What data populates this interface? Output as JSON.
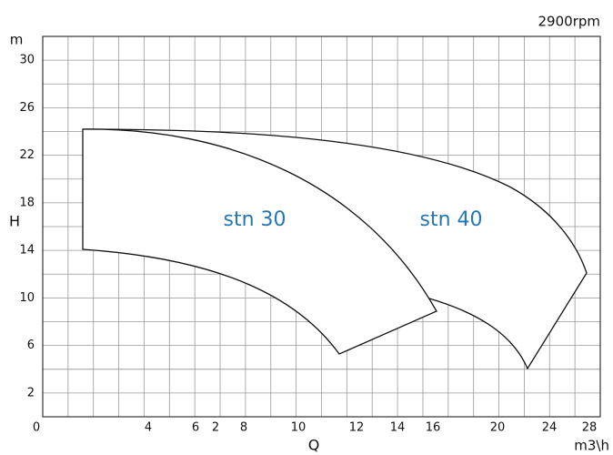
{
  "chart_data": {
    "type": "pump-curve",
    "subtitle": "2900rpm",
    "y_unit": "m",
    "y_label": "H",
    "x_label": "Q",
    "x_unit": "m3\\h",
    "ylim": [
      0,
      32
    ],
    "yticks": [
      2,
      6,
      10,
      14,
      18,
      22,
      26,
      30
    ],
    "x_tick_labels": [
      "0",
      "4",
      "6",
      "2",
      "8",
      "10",
      "12",
      "14",
      "16",
      "20",
      "24",
      "28"
    ],
    "series": [
      {
        "name": "stn 30",
        "color": "#2477b3"
      },
      {
        "name": "stn 40",
        "color": "#2477b3"
      }
    ],
    "grid": true
  }
}
